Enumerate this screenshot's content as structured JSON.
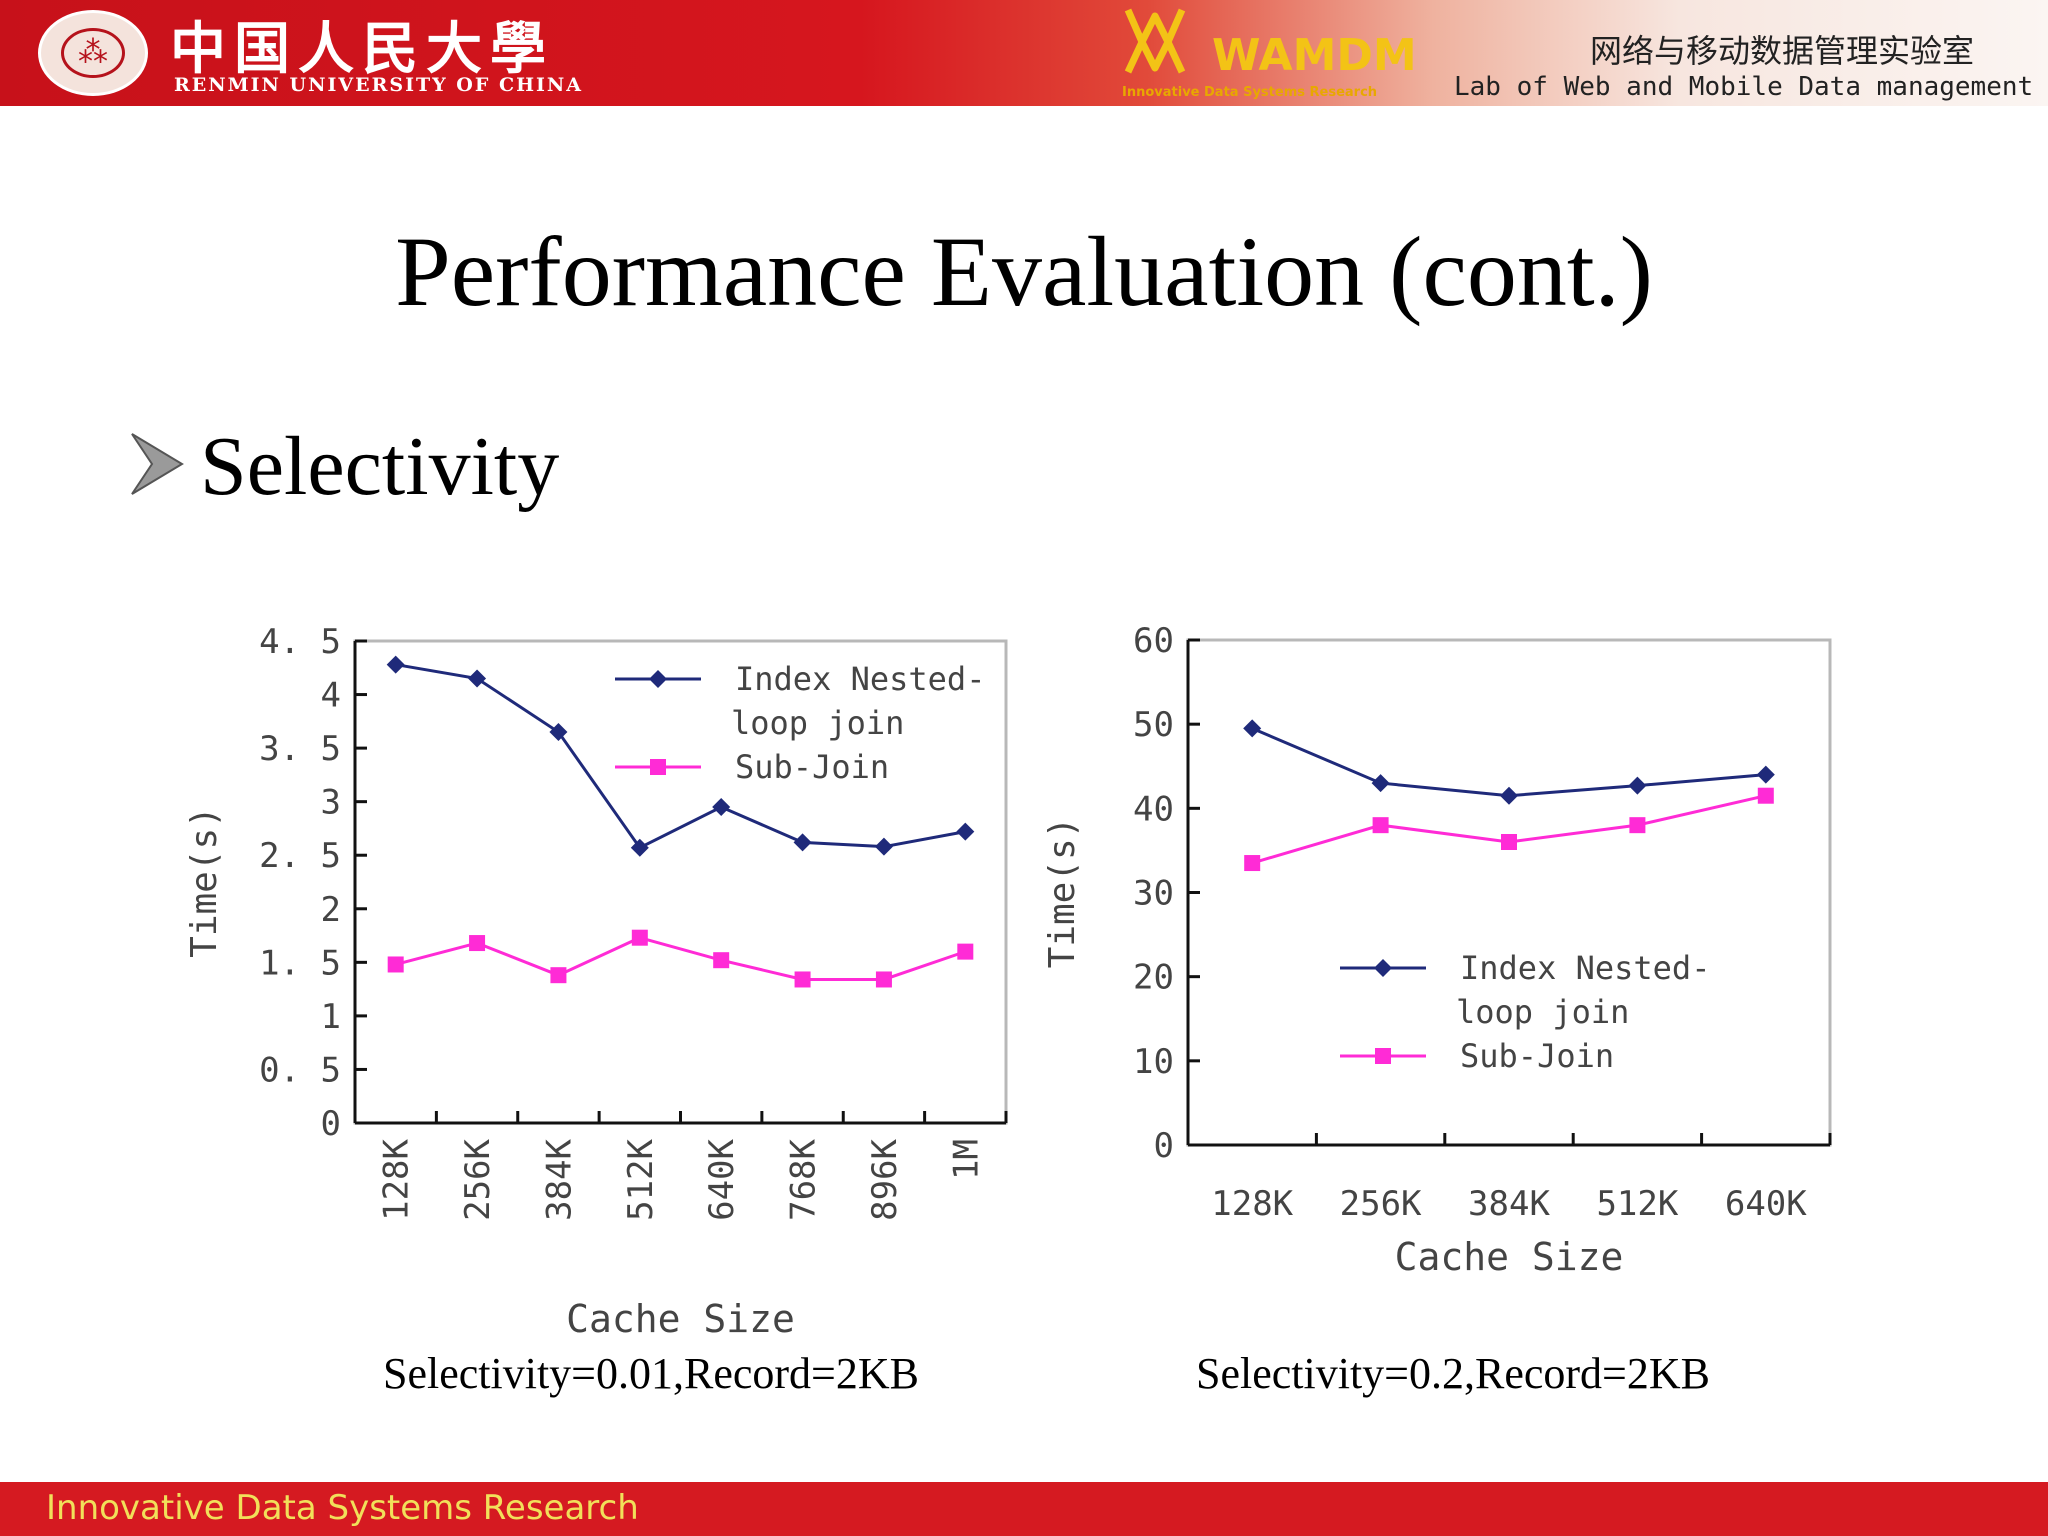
{
  "header": {
    "university_name_cn": "中国人民大學",
    "university_name_en": "RENMIN UNIVERSITY OF CHINA",
    "lab_logo": "WAMDM",
    "lab_tagline": "Innovative Data Systems Research",
    "lab_name_cn": "网络与移动数据管理实验室",
    "lab_name_en": "Lab of Web and Mobile Data management",
    "colors": {
      "red": "#d51a21",
      "gold": "#f3c316"
    }
  },
  "slide": {
    "title": "Performance Evaluation (cont.)",
    "bullet": "Selectivity"
  },
  "chart_data": [
    {
      "type": "line",
      "categories": [
        "128K",
        "256K",
        "384K",
        "512K",
        "640K",
        "768K",
        "896K",
        "1M"
      ],
      "series": [
        {
          "name": "Index Nested-loop join",
          "values": [
            4.28,
            4.15,
            3.65,
            2.57,
            2.95,
            2.62,
            2.58,
            2.72
          ],
          "color": "#1f2a7a",
          "marker": "diamond"
        },
        {
          "name": "Sub-Join",
          "values": [
            1.48,
            1.68,
            1.38,
            1.73,
            1.52,
            1.34,
            1.34,
            1.6
          ],
          "color": "#ff2bd6",
          "marker": "square"
        }
      ],
      "legend_lines": [
        [
          "Index Nested-",
          "loop join"
        ],
        [
          "Sub-Join"
        ]
      ],
      "xlabel": "Cache Size",
      "ylabel": "Time(s)",
      "ylim": [
        0,
        4.5
      ],
      "yticks": [
        0,
        0.5,
        1,
        1.5,
        2,
        2.5,
        3,
        3.5,
        4,
        4.5
      ],
      "ytick_labels": [
        "0",
        "0. 5",
        "1",
        "1. 5",
        "2",
        "2. 5",
        "3",
        "3. 5",
        "4",
        "4. 5"
      ],
      "grid": false,
      "legend_position": "top-right",
      "caption": "Selectivity=0.01,Record=2KB"
    },
    {
      "type": "line",
      "categories": [
        "128K",
        "256K",
        "384K",
        "512K",
        "640K"
      ],
      "series": [
        {
          "name": "Index Nested-loop join",
          "values": [
            49.5,
            43.0,
            41.5,
            42.7,
            44.0
          ],
          "color": "#1f2a7a",
          "marker": "diamond"
        },
        {
          "name": "Sub-Join",
          "values": [
            33.5,
            38.0,
            36.0,
            38.0,
            41.5
          ],
          "color": "#ff2bd6",
          "marker": "square"
        }
      ],
      "legend_lines": [
        [
          "Index Nested-",
          "loop join"
        ],
        [
          "Sub-Join"
        ]
      ],
      "xlabel": "Cache Size",
      "ylabel": "Time(s)",
      "ylim": [
        0,
        60
      ],
      "yticks": [
        0,
        10,
        20,
        30,
        40,
        50,
        60
      ],
      "ytick_labels": [
        "0",
        "10",
        "20",
        "30",
        "40",
        "50",
        "60"
      ],
      "grid": false,
      "legend_position": "center-right",
      "caption": "Selectivity=0.2,Record=2KB"
    }
  ],
  "footer": {
    "text": "Innovative Data Systems Research"
  }
}
